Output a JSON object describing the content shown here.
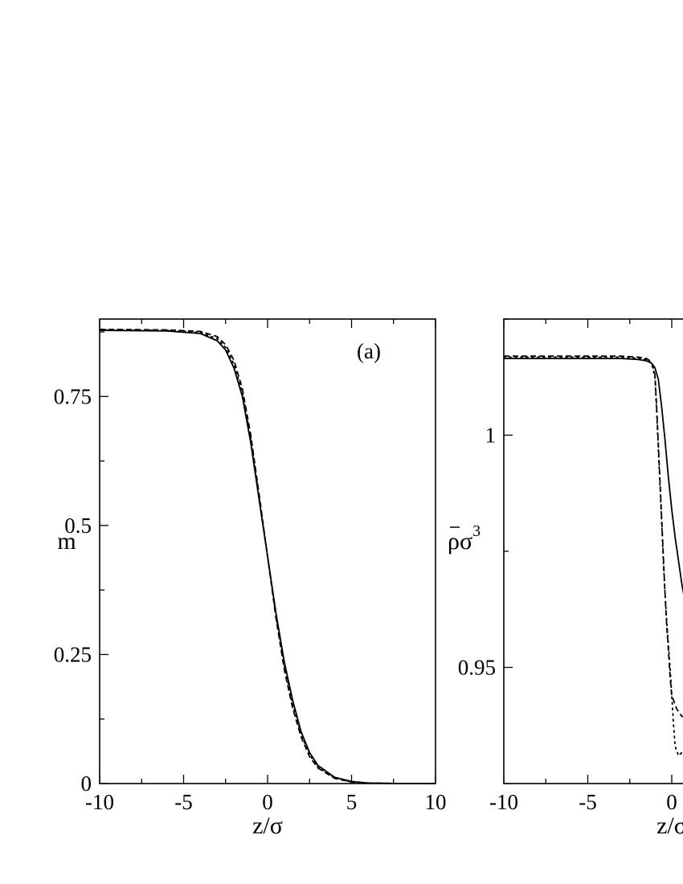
{
  "chart_data": [
    {
      "type": "line",
      "panel_label": "(a)",
      "xlabel": "z/σ",
      "ylabel": "m",
      "xlim": [
        -10,
        10
      ],
      "ylim": [
        0,
        0.9
      ],
      "xticks": [
        -10,
        -5,
        0,
        5,
        10
      ],
      "xtick_labels": [
        "-10",
        "-5",
        "0",
        "5",
        "10"
      ],
      "yticks": [
        0,
        0.25,
        0.5,
        0.75
      ],
      "ytick_labels": [
        "0",
        "0.25",
        "0.5",
        "0.75"
      ],
      "legend": "none",
      "grid": false,
      "series": [
        {
          "style": "solid",
          "x": [
            -10,
            -6,
            -4,
            -3,
            -2.5,
            -2,
            -1.5,
            -1,
            -0.5,
            0,
            0.5,
            1,
            1.5,
            2,
            2.5,
            3,
            4,
            5,
            6,
            8,
            10
          ],
          "y": [
            0.878,
            0.877,
            0.872,
            0.858,
            0.84,
            0.805,
            0.75,
            0.66,
            0.55,
            0.44,
            0.33,
            0.235,
            0.16,
            0.1,
            0.06,
            0.035,
            0.012,
            0.004,
            0.001,
            0.0,
            0.0
          ]
        },
        {
          "style": "dashed",
          "x": [
            -10,
            -6,
            -4,
            -3,
            -2.5,
            -2,
            -1.5,
            -1,
            -0.5,
            0,
            0.5,
            1,
            1.5,
            2,
            2.5,
            3,
            4,
            5,
            6,
            8,
            10
          ],
          "y": [
            0.88,
            0.879,
            0.876,
            0.866,
            0.85,
            0.82,
            0.765,
            0.675,
            0.56,
            0.44,
            0.32,
            0.22,
            0.145,
            0.09,
            0.052,
            0.03,
            0.01,
            0.003,
            0.001,
            0.0,
            0.0
          ]
        },
        {
          "style": "dotted",
          "x": [
            -10,
            -6,
            -4,
            -3,
            -2.5,
            -2,
            -1.5,
            -1,
            -0.5,
            0,
            0.5,
            1,
            1.5,
            2,
            2.5,
            3,
            4,
            5,
            6,
            8,
            10
          ],
          "y": [
            0.879,
            0.878,
            0.874,
            0.862,
            0.845,
            0.812,
            0.758,
            0.668,
            0.555,
            0.44,
            0.325,
            0.228,
            0.152,
            0.095,
            0.056,
            0.032,
            0.011,
            0.003,
            0.001,
            0.0,
            0.0
          ]
        }
      ]
    },
    {
      "type": "line",
      "xlabel": "z/σ",
      "ylabel": "ρσ",
      "ylabel_superscript": "3",
      "xlim": [
        -10,
        10
      ],
      "ylim": [
        0.925,
        1.025
      ],
      "xticks": [
        -10,
        -5,
        0
      ],
      "xtick_labels": [
        "-10",
        "-5",
        "0"
      ],
      "yticks": [
        0.95,
        1
      ],
      "ytick_labels": [
        "0.95",
        "1"
      ],
      "legend": "none",
      "grid": false,
      "series": [
        {
          "style": "solid",
          "x": [
            -10,
            -5,
            -3,
            -2,
            -1.5,
            -1.2,
            -1,
            -0.8,
            -0.6,
            -0.4,
            -0.2,
            0,
            0.2,
            0.4,
            0.6,
            0.8,
            1,
            1.3
          ],
          "y": [
            1.0165,
            1.0165,
            1.0165,
            1.0163,
            1.016,
            1.0155,
            1.0145,
            1.012,
            1.006,
            0.999,
            0.991,
            0.984,
            0.978,
            0.973,
            0.968,
            0.964,
            0.961,
            0.958
          ]
        },
        {
          "style": "dashed",
          "x": [
            -10,
            -5,
            -3,
            -2,
            -1.5,
            -1.2,
            -1,
            -0.9,
            -0.8,
            -0.7,
            -0.6,
            -0.5,
            -0.4,
            -0.3,
            -0.2,
            -0.1,
            0,
            0.3,
            0.6,
            1.0,
            1.3
          ],
          "y": [
            1.017,
            1.017,
            1.017,
            1.0168,
            1.0165,
            1.0158,
            1.013,
            1.006,
            0.998,
            0.99,
            0.982,
            0.974,
            0.966,
            0.959,
            0.954,
            0.948,
            0.944,
            0.941,
            0.9395,
            0.939,
            0.9385
          ]
        },
        {
          "style": "dotted",
          "x": [
            -10,
            -5,
            -3,
            -2,
            -1.5,
            -1.2,
            -1,
            -0.9,
            -0.8,
            -0.7,
            -0.6,
            -0.5,
            -0.4,
            -0.3,
            -0.2,
            -0.1,
            0,
            0.1,
            0.2,
            0.4,
            0.7,
            1.0,
            1.3
          ],
          "y": [
            1.0168,
            1.0168,
            1.0168,
            1.0166,
            1.0163,
            1.0155,
            1.0125,
            1.005,
            0.997,
            0.989,
            0.981,
            0.973,
            0.966,
            0.96,
            0.955,
            0.95,
            0.944,
            0.938,
            0.933,
            0.931,
            0.932,
            0.934,
            0.935
          ]
        }
      ]
    }
  ]
}
